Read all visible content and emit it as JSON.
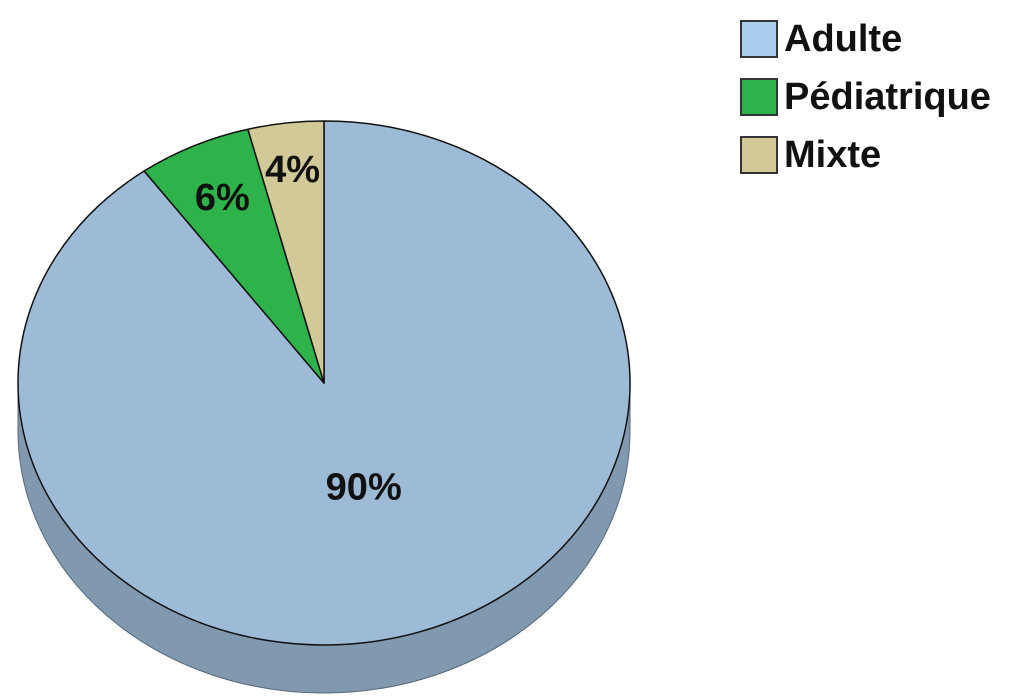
{
  "chart_data": {
    "type": "pie",
    "title": "",
    "labels": [
      "Adulte",
      "Pédiatrique",
      "Mixte"
    ],
    "values": [
      90,
      6,
      4
    ],
    "data_labels": [
      "90%",
      "6%",
      "4%"
    ],
    "colors": [
      "#9dbad6",
      "#2db34a",
      "#d2c998"
    ],
    "legend_colors": [
      "#a9cdee",
      "#2db34a",
      "#d2c998"
    ],
    "legend_position": "top-right",
    "style": "3d"
  }
}
